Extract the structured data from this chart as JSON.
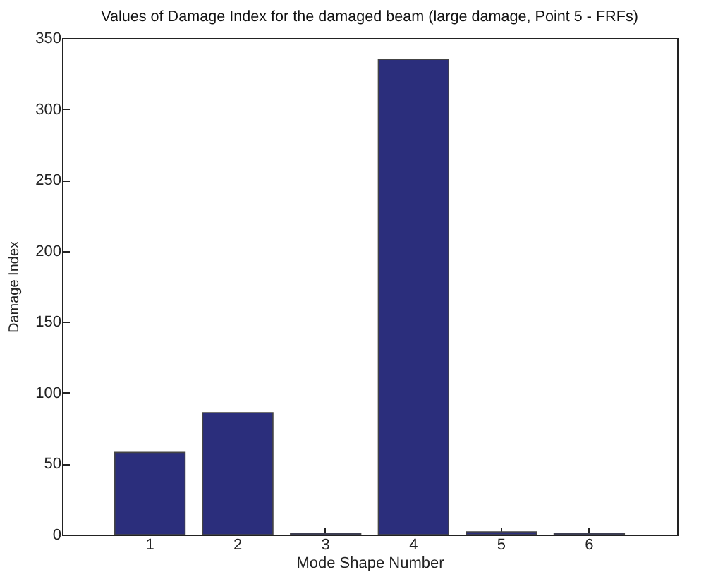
{
  "chart_data": {
    "type": "bar",
    "title": "Values of Damage Index for the damaged beam (large damage, Point 5 - FRFs)",
    "xlabel": "Mode Shape Number",
    "ylabel": "Damage Index",
    "categories": [
      "1",
      "2",
      "3",
      "4",
      "5",
      "6"
    ],
    "values": [
      58,
      86,
      1,
      335,
      2,
      1
    ],
    "color": "#2b2e7c",
    "ylim": [
      0,
      350
    ],
    "yticks": [
      0,
      50,
      100,
      150,
      200,
      250,
      300,
      350
    ],
    "grid": false
  }
}
